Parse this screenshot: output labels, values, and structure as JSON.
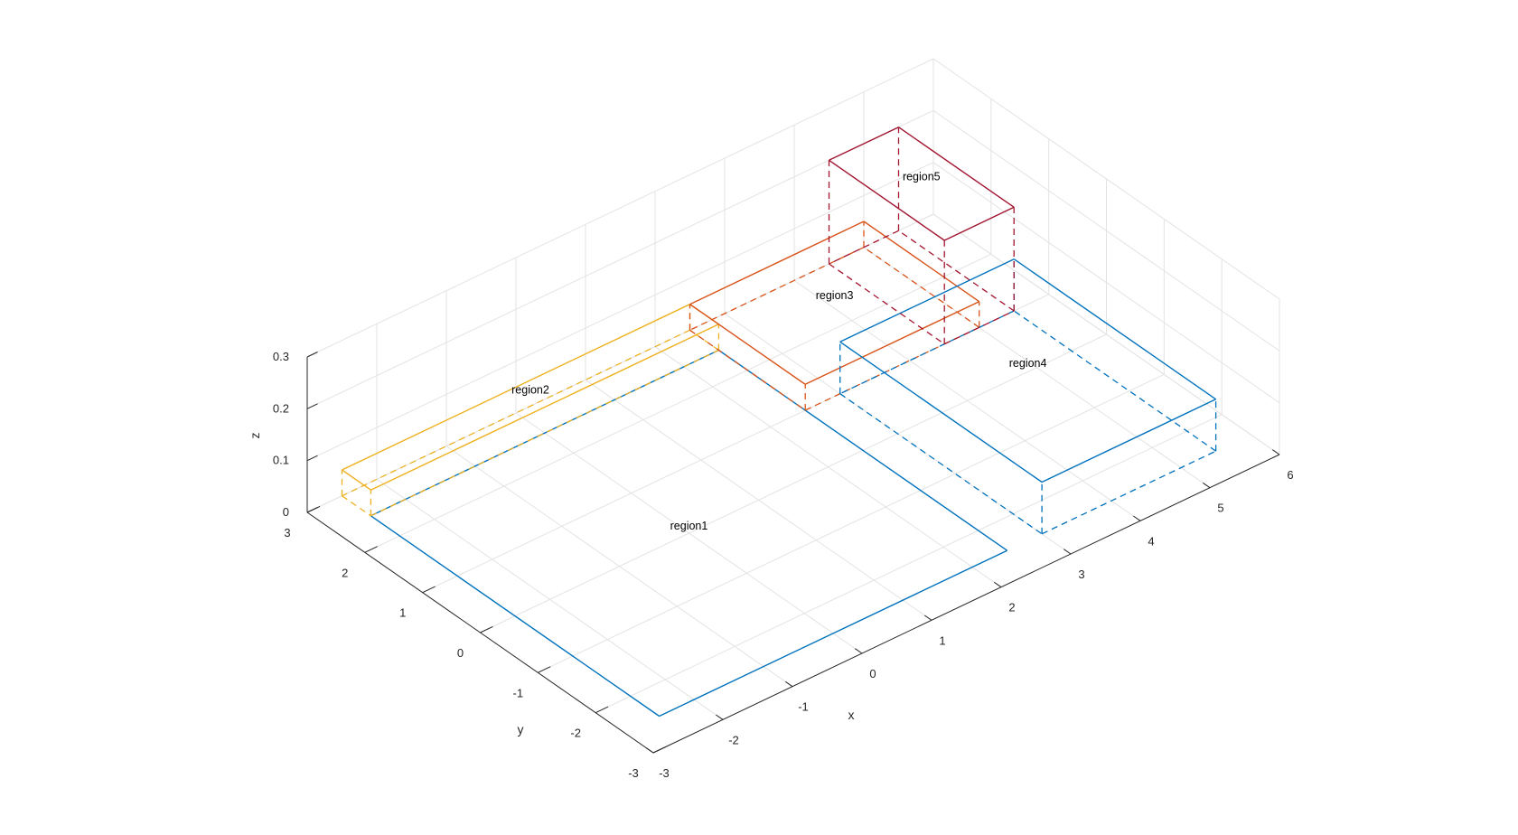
{
  "chart_data": {
    "type": "3d-wireframe",
    "title": "",
    "xlabel": "x",
    "ylabel": "y",
    "zlabel": "z",
    "xlim": [
      -3,
      6
    ],
    "ylim": [
      -3,
      3
    ],
    "zlim": [
      0,
      0.3
    ],
    "xticks": [
      "-3",
      "-2",
      "-1",
      "0",
      "1",
      "2",
      "3",
      "4",
      "5",
      "6"
    ],
    "yticks": [
      "-3",
      "-2",
      "-1",
      "0",
      "1",
      "2",
      "3"
    ],
    "zticks": [
      "0",
      "0.1",
      "0.2",
      "0.3"
    ],
    "grid": true,
    "regions": [
      {
        "name": "region1",
        "color": "#0072BD",
        "x": [
          -2.5,
          2.5
        ],
        "y": [
          -2.5,
          2.5
        ],
        "z": [
          0,
          0
        ]
      },
      {
        "name": "region2",
        "color": "#EDB120",
        "x": [
          -2.5,
          2.5
        ],
        "y": [
          2.5,
          3.0
        ],
        "z": [
          0,
          0.05
        ]
      },
      {
        "name": "region3",
        "color": "#D95319",
        "x": [
          2.5,
          5.0
        ],
        "y": [
          1.0,
          3.0
        ],
        "z": [
          0,
          0.05
        ]
      },
      {
        "name": "region4",
        "color": "#0072BD",
        "x": [
          3.0,
          5.5
        ],
        "y": [
          -2.5,
          1.0
        ],
        "z": [
          0,
          0.1
        ]
      },
      {
        "name": "region5",
        "color": "#A2142F",
        "x": [
          4.5,
          5.5
        ],
        "y": [
          1.0,
          3.0
        ],
        "z": [
          0,
          0.2
        ]
      }
    ]
  }
}
